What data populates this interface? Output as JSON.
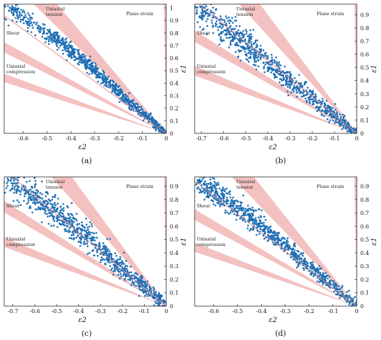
{
  "chart_data": [
    {
      "type": "scatter",
      "caption": "(a)",
      "xlabel": "ε2",
      "ylabel": "ε1",
      "xlim": [
        -0.68,
        0
      ],
      "ylim": [
        0,
        1.03
      ],
      "xticks": [
        -0.6,
        -0.5,
        -0.4,
        -0.3,
        -0.2,
        -0.1,
        0
      ],
      "xtick_labels": [
        "-0.6",
        "-0.5",
        "-0.4",
        "-0.3",
        "-0.2",
        "-0.1",
        "0"
      ],
      "yticks": [
        0,
        0.1,
        0.2,
        0.3,
        0.4,
        0.5,
        0.6,
        0.7,
        0.8,
        0.9,
        1
      ],
      "ytick_labels": [
        "0",
        "0.1",
        "0.2",
        "0.3",
        "0.4",
        "0.5",
        "0.6",
        "0.7",
        "0.8",
        "0.9",
        "1"
      ],
      "grid": false,
      "region_labels": {
        "shear": "Shear",
        "uniaxial_tension": "Uniaxial\ntension",
        "uniaxial_compression": "Uniaxial\ncompression",
        "plane_strain": "Plane strain"
      },
      "series": [
        {
          "points": [
            [
              -0.66,
              1.0
            ],
            [
              -0.6,
              0.93
            ],
            [
              -0.5,
              0.8
            ],
            [
              -0.45,
              0.73
            ],
            [
              -0.4,
              0.66
            ],
            [
              -0.35,
              0.58
            ],
            [
              -0.3,
              0.5
            ],
            [
              -0.25,
              0.42
            ],
            [
              -0.2,
              0.33
            ],
            [
              -0.15,
              0.24
            ],
            [
              -0.1,
              0.16
            ],
            [
              -0.05,
              0.08
            ],
            [
              0,
              0
            ]
          ],
          "spread": 0.035
        }
      ]
    },
    {
      "type": "scatter",
      "caption": "(b)",
      "xlabel": "ε2",
      "ylabel": "ε1",
      "xlim": [
        -0.73,
        0
      ],
      "ylim": [
        0,
        0.98
      ],
      "xticks": [
        -0.7,
        -0.6,
        -0.5,
        -0.4,
        -0.3,
        -0.2,
        -0.1,
        0
      ],
      "xtick_labels": [
        "-0.7",
        "-0.6",
        "-0.5",
        "-0.4",
        "-0.3",
        "-0.2",
        "-0.1",
        "0"
      ],
      "yticks": [
        0,
        0.1,
        0.2,
        0.3,
        0.4,
        0.5,
        0.6,
        0.7,
        0.8,
        0.9
      ],
      "ytick_labels": [
        "0",
        "0.1",
        "0.2",
        "0.3",
        "0.4",
        "0.5",
        "0.6",
        "0.7",
        "0.8",
        "0.9"
      ],
      "grid": false,
      "region_labels": {
        "shear": "Shear",
        "uniaxial_tension": "Uniaxial\ntension",
        "uniaxial_compression": "Uniaxial\ncompression",
        "plane_strain": "Plane strain"
      },
      "series": [
        {
          "points": [
            [
              -0.73,
              0.98
            ],
            [
              -0.6,
              0.8
            ],
            [
              -0.5,
              0.67
            ],
            [
              -0.4,
              0.53
            ],
            [
              -0.3,
              0.4
            ],
            [
              -0.2,
              0.26
            ],
            [
              -0.1,
              0.13
            ],
            [
              0,
              0
            ]
          ],
          "spread": 0.055
        }
      ]
    },
    {
      "type": "scatter",
      "caption": "(c)",
      "xlabel": "ε2",
      "ylabel": "ε1",
      "xlim": [
        -0.74,
        0
      ],
      "ylim": [
        0,
        0.97
      ],
      "xticks": [
        -0.7,
        -0.6,
        -0.5,
        -0.4,
        -0.3,
        -0.2,
        -0.1,
        0
      ],
      "xtick_labels": [
        "-0.7",
        "-0.6",
        "-0.5",
        "-0.4",
        "-0.3",
        "-0.2",
        "-0.1",
        "0"
      ],
      "yticks": [
        0,
        0.1,
        0.2,
        0.3,
        0.4,
        0.5,
        0.6,
        0.7,
        0.8,
        0.9
      ],
      "ytick_labels": [
        "0",
        "0.1",
        "0.2",
        "0.3",
        "0.4",
        "0.5",
        "0.6",
        "0.7",
        "0.8",
        "0.9"
      ],
      "grid": false,
      "region_labels": {
        "shear": "Shear",
        "uniaxial_tension": "Uniaxial\ntension",
        "uniaxial_compression": "Uniaxial\ncompression",
        "plane_strain": "Plane strain"
      },
      "series": [
        {
          "points": [
            [
              -0.74,
              0.96
            ],
            [
              -0.6,
              0.82
            ],
            [
              -0.5,
              0.7
            ],
            [
              -0.4,
              0.57
            ],
            [
              -0.3,
              0.43
            ],
            [
              -0.2,
              0.28
            ],
            [
              -0.1,
              0.14
            ],
            [
              0,
              0
            ]
          ],
          "spread": 0.06
        }
      ]
    },
    {
      "type": "scatter",
      "caption": "(d)",
      "xlabel": "ε2",
      "ylabel": "ε1",
      "xlim": [
        -0.68,
        0
      ],
      "ylim": [
        0,
        0.97
      ],
      "xticks": [
        -0.6,
        -0.5,
        -0.4,
        -0.3,
        -0.2,
        -0.1,
        0
      ],
      "xtick_labels": [
        "-0.6",
        "-0.5",
        "-0.4",
        "-0.3",
        "-0.2",
        "-0.1",
        "0"
      ],
      "yticks": [
        0,
        0.1,
        0.2,
        0.3,
        0.4,
        0.5,
        0.6,
        0.7,
        0.8,
        0.9
      ],
      "ytick_labels": [
        "0",
        "0.1",
        "0.2",
        "0.3",
        "0.4",
        "0.5",
        "0.6",
        "0.7",
        "0.8",
        "0.9"
      ],
      "grid": false,
      "region_labels": {
        "shear": "Shear",
        "uniaxial_tension": "Uniaxial\ntension",
        "uniaxial_compression": "Uniaxial\ncompression",
        "plane_strain": "Plane strain"
      },
      "series": [
        {
          "points": [
            [
              -0.68,
              0.96
            ],
            [
              -0.6,
              0.86
            ],
            [
              -0.5,
              0.73
            ],
            [
              -0.4,
              0.6
            ],
            [
              -0.3,
              0.45
            ],
            [
              -0.2,
              0.3
            ],
            [
              -0.1,
              0.15
            ],
            [
              0,
              0
            ]
          ],
          "spread": 0.045
        }
      ]
    }
  ],
  "colors": {
    "points": "#1f6fb4",
    "bands": "#f2b6b6",
    "ideal_line": "#e88a8a"
  }
}
